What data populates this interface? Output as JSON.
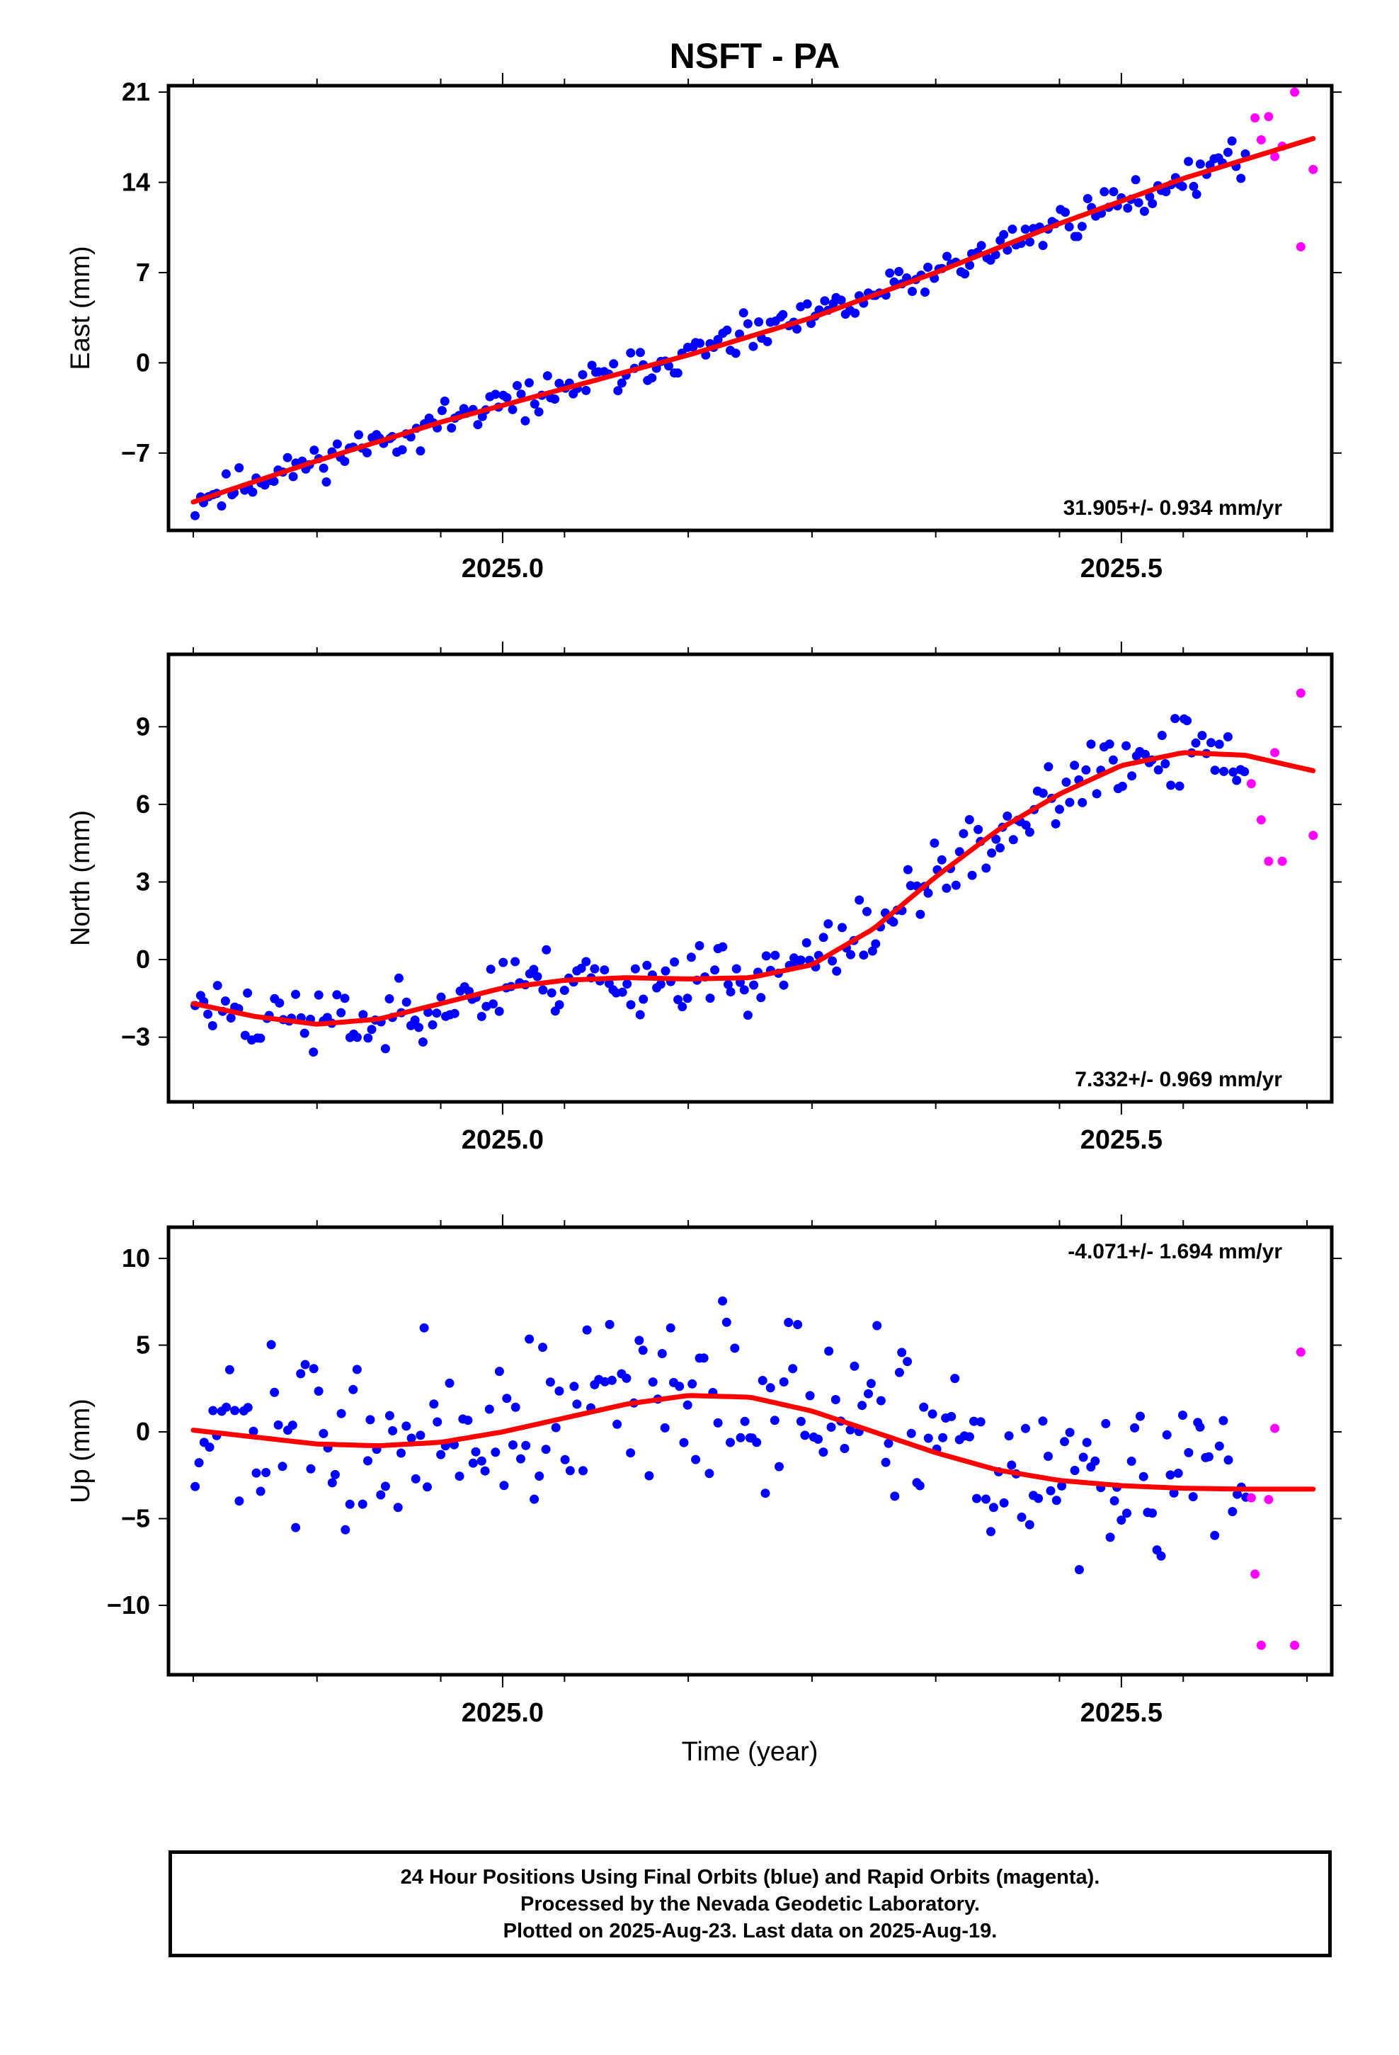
{
  "title": "NSFT - PA",
  "time_axis_label": "Time (year)",
  "caption_lines": [
    "24 Hour Positions Using Final Orbits (blue) and Rapid Orbits (magenta).",
    "Processed by the Nevada Geodetic Laboratory.",
    "Plotted on 2025-Aug-23. Last data on 2025-Aug-19."
  ],
  "colors": {
    "final_orbits": "#0000ff",
    "rapid_orbits": "#ff00ff",
    "fit_line": "#ff0000",
    "frame": "#000000"
  },
  "chart_data": [
    {
      "type": "scatter",
      "ylabel": "East (mm)",
      "xlim": [
        2024.73,
        2025.67
      ],
      "ylim": [
        -13,
        21.5
      ],
      "xticks": [
        2025.0,
        2025.5
      ],
      "yticks": [
        -7,
        0,
        7,
        14,
        21
      ],
      "rate_label": "31.905+/- 0.934 mm/yr",
      "rate_position": "bottom-right",
      "trend": {
        "type": "line",
        "x": [
          2024.75,
          2024.85,
          2024.95,
          2025.05,
          2025.15,
          2025.25,
          2025.35,
          2025.45,
          2025.55,
          2025.655
        ],
        "y": [
          -10.8,
          -7.6,
          -4.6,
          -2.0,
          0.6,
          3.5,
          7.0,
          10.8,
          14.3,
          17.4
        ]
      },
      "rapid_points": {
        "x": [
          2025.608,
          2025.613,
          2025.619,
          2025.624,
          2025.63,
          2025.64,
          2025.645,
          2025.655
        ],
        "y": [
          19,
          17.3,
          19.1,
          16,
          16.8,
          21,
          9,
          15
        ]
      },
      "final_series": {
        "name": "final",
        "start": 2024.752,
        "end": 2025.6,
        "count": 240,
        "noise_amp": 1.3,
        "seed": 11,
        "min_y": -13,
        "max_y": 21
      }
    },
    {
      "type": "scatter",
      "ylabel": "North (mm)",
      "xlim": [
        2024.73,
        2025.67
      ],
      "ylim": [
        -5.5,
        11.8
      ],
      "xticks": [
        2025.0,
        2025.5
      ],
      "yticks": [
        -3,
        0,
        3,
        6,
        9
      ],
      "rate_label": "7.332+/- 0.969 mm/yr",
      "rate_position": "bottom-right",
      "trend": {
        "type": "line",
        "x": [
          2024.75,
          2024.8,
          2024.85,
          2024.9,
          2024.95,
          2025.0,
          2025.05,
          2025.1,
          2025.15,
          2025.2,
          2025.25,
          2025.3,
          2025.35,
          2025.4,
          2025.45,
          2025.5,
          2025.55,
          2025.6,
          2025.655
        ],
        "y": [
          -1.7,
          -2.2,
          -2.5,
          -2.3,
          -1.7,
          -1.1,
          -0.8,
          -0.7,
          -0.75,
          -0.7,
          -0.2,
          1.2,
          3.2,
          5.0,
          6.4,
          7.5,
          8.0,
          7.9,
          7.3
        ]
      },
      "rapid_points": {
        "x": [
          2025.605,
          2025.613,
          2025.619,
          2025.624,
          2025.63,
          2025.645,
          2025.655
        ],
        "y": [
          6.8,
          5.4,
          3.8,
          8,
          3.8,
          10.3,
          4.8
        ]
      },
      "final_series": {
        "name": "final",
        "start": 2024.752,
        "end": 2025.6,
        "count": 240,
        "noise_amp": 1.2,
        "seed": 23,
        "min_y": -5.2,
        "max_y": 11.5
      }
    },
    {
      "type": "scatter",
      "ylabel": "Up (mm)",
      "xlim": [
        2024.73,
        2025.67
      ],
      "ylim": [
        -14,
        11.8
      ],
      "xticks": [
        2025.0,
        2025.5
      ],
      "yticks": [
        -10,
        -5,
        0,
        5,
        10
      ],
      "rate_label": "-4.071+/- 1.694 mm/yr",
      "rate_position": "top-right",
      "trend": {
        "type": "line",
        "x": [
          2024.75,
          2024.8,
          2024.85,
          2024.9,
          2024.95,
          2025.0,
          2025.05,
          2025.1,
          2025.15,
          2025.2,
          2025.25,
          2025.3,
          2025.35,
          2025.4,
          2025.45,
          2025.5,
          2025.55,
          2025.6,
          2025.655
        ],
        "y": [
          0.1,
          -0.3,
          -0.7,
          -0.8,
          -0.6,
          0,
          0.8,
          1.6,
          2.1,
          2.0,
          1.2,
          0,
          -1.2,
          -2.2,
          -2.8,
          -3.1,
          -3.25,
          -3.3,
          -3.3
        ]
      },
      "rapid_points": {
        "x": [
          2025.605,
          2025.608,
          2025.613,
          2025.619,
          2025.624,
          2025.64,
          2025.645
        ],
        "y": [
          -3.8,
          -8.2,
          -12.3,
          -3.9,
          0.2,
          -12.3,
          4.6
        ]
      },
      "final_series": {
        "name": "final",
        "start": 2024.752,
        "end": 2025.6,
        "count": 240,
        "noise_amp": 4.5,
        "seed": 37,
        "min_y": -11.2,
        "max_y": 11
      }
    }
  ]
}
